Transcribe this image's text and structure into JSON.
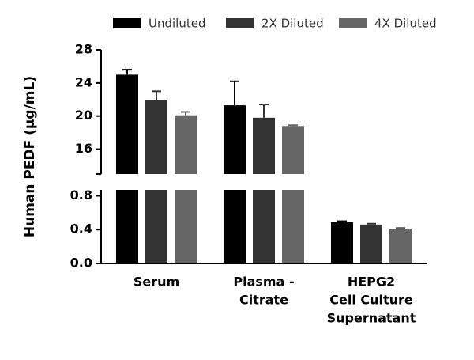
{
  "chart_data": {
    "type": "bar",
    "y_label": "Human PEDF (μg/mL)",
    "categories": [
      [
        "Serum"
      ],
      [
        "Plasma -",
        "Citrate"
      ],
      [
        "HEPG2",
        "Cell Culture",
        "Supernatant"
      ]
    ],
    "series": [
      {
        "name": "Undiluted",
        "color": "#000000",
        "values": [
          25.0,
          21.3,
          0.49
        ],
        "errors": [
          0.6,
          2.9,
          0.01
        ]
      },
      {
        "name": "2X Diluted",
        "color": "#333333",
        "values": [
          21.9,
          19.8,
          0.46
        ],
        "errors": [
          1.1,
          1.6,
          0.01
        ]
      },
      {
        "name": "4X Diluted",
        "color": "#666666",
        "values": [
          20.1,
          18.8,
          0.41
        ],
        "errors": [
          0.4,
          0.1,
          0.01
        ]
      }
    ],
    "y_segments": [
      {
        "ylim": [
          0,
          0.87
        ],
        "yticks": [
          {
            "value": 0,
            "label": "0.0"
          },
          0.4,
          0.8
        ]
      },
      {
        "ylim": [
          13,
          28
        ],
        "yticks": [
          16,
          20,
          24,
          28
        ]
      }
    ]
  }
}
